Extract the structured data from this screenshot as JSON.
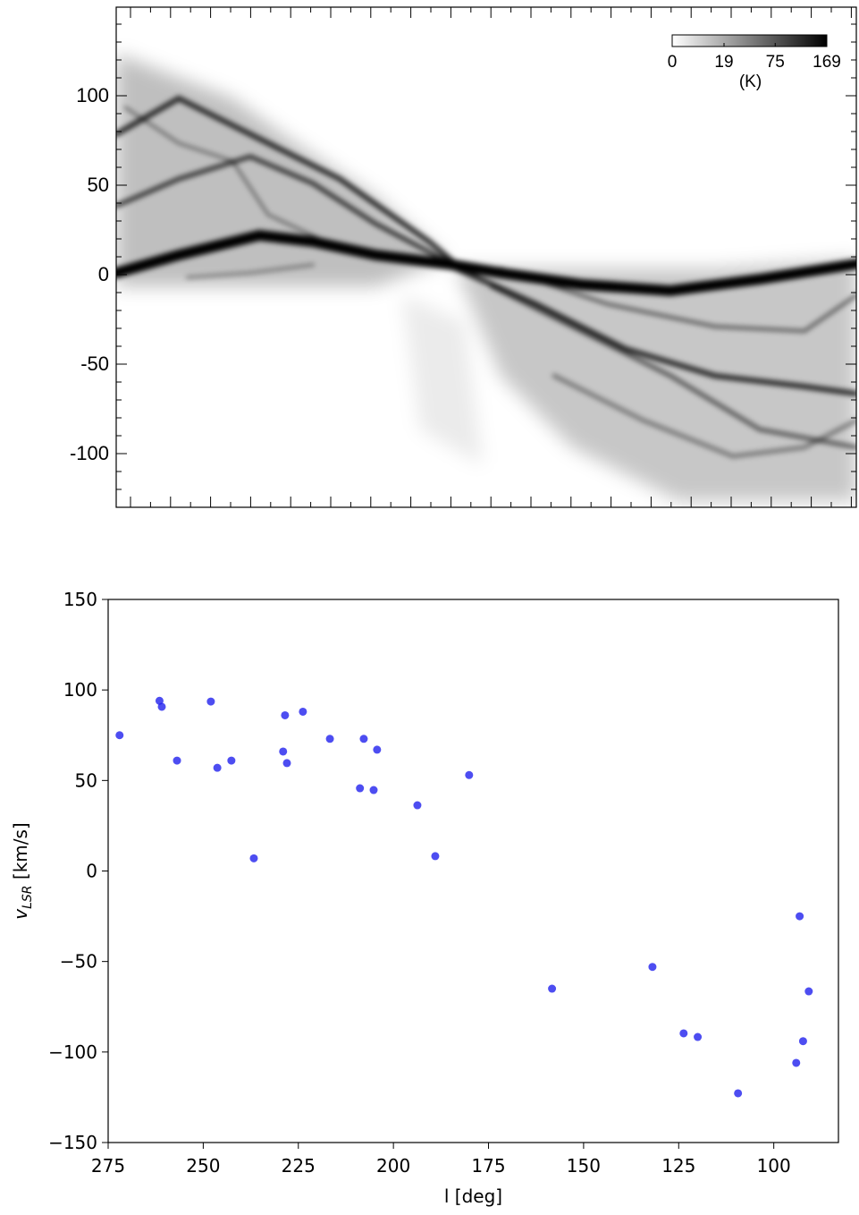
{
  "chart_data": [
    {
      "type": "image",
      "ylim": [
        -130,
        149.5
      ],
      "yticks": [
        -100,
        -50,
        0,
        50,
        100
      ],
      "colorbar": {
        "label": "(K)",
        "lim": [
          0,
          169
        ],
        "ticks": [
          0,
          19,
          75,
          169
        ],
        "scale": "sqrt",
        "colors": [
          "#ffffff",
          "#000000"
        ]
      }
    },
    {
      "type": "scatter",
      "color": "#2020ee",
      "x": [
        272,
        261.5,
        260.9,
        256.9,
        248,
        246.3,
        242.6,
        236.7,
        229,
        228.5,
        228,
        223.8,
        216.7,
        208.8,
        207.8,
        205.2,
        204.3,
        193.7,
        189,
        180.1,
        158.3,
        131.9,
        123.7,
        120,
        109.4,
        94.1,
        93.2,
        92.3,
        90.8
      ],
      "y": [
        75,
        94,
        90.7,
        61,
        93.6,
        57,
        61,
        7,
        66,
        86,
        59.6,
        88,
        73,
        45.7,
        73,
        44.7,
        67,
        36.3,
        8.2,
        53,
        -65,
        -53,
        -89.7,
        -91.7,
        -122.8,
        -106,
        -25,
        -94,
        -66.5
      ],
      "xlim": [
        275,
        83
      ],
      "xticks": [
        275,
        250,
        225,
        200,
        175,
        150,
        125,
        100
      ],
      "ylim": [
        -150,
        150
      ],
      "yticks": [
        {
          "value": -150,
          "label": "−150"
        },
        {
          "value": -100,
          "label": "−100"
        },
        {
          "value": -50,
          "label": "−50"
        },
        0,
        50,
        100,
        150
      ],
      "xlabel": "l [deg]",
      "ylabel": [
        "v",
        "LSR",
        " [km/s]"
      ]
    }
  ]
}
